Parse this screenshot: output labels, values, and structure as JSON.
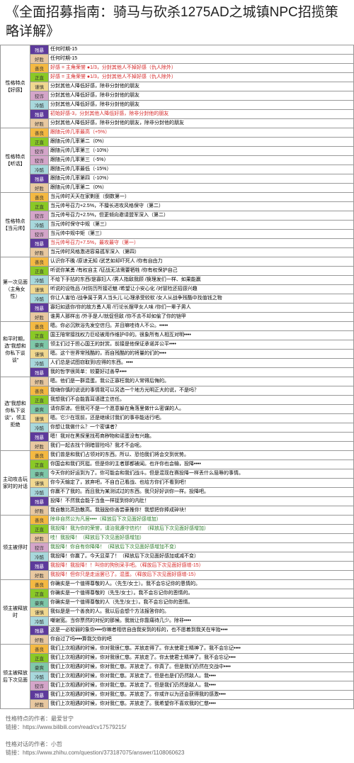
{
  "title": "《全面招募指南：骑马与砍杀1275AD之城镇NPC招揽策略详解》",
  "colors": {
    "残暴": "#5d3a9b",
    "善良": "#f4b942",
    "正直": "#8ac926",
    "狡诈": "#d4a5c9",
    "冷酷": "#a8d8dc",
    "好胜": "#e8c8a0",
    "谨慎": "#f0d890",
    "豪爽": "#7fc8a9"
  },
  "sections": [
    {
      "category": "性格特点\n【好感】",
      "rows": [
        {
          "tag": "残暴",
          "content": "任何时期-15",
          "red": false
        },
        {
          "tag": "好胜",
          "content": "任何时期-15",
          "red": false
        },
        {
          "tag": "善良",
          "content": "好感 = 主角荣誉 ●1/3，分封其他人不掉好感（仇人除外）",
          "red": true
        },
        {
          "tag": "正直",
          "content": "好感 = 主角荣誉 ●1/3，分封其他人不掉好感（仇人除外）",
          "red": true
        },
        {
          "tag": "谨慎",
          "content": "分封其他人降低好感，除非分封他的朋友"
        },
        {
          "tag": "狡诈",
          "content": "分封其他人降低好感，除非分封他的朋友"
        },
        {
          "tag": "冷酷",
          "content": "分封其他人降低好感，除非分封他的朋友"
        },
        {
          "tag": "残暴",
          "content": "初始好感-3，分封其他人降低好感，除非分封他的朋友",
          "red": true
        },
        {
          "tag": "好胜",
          "content": "分封其他人降低好感，除非分封他的朋友，除非分封他的朋友"
        }
      ]
    },
    {
      "category": "性格特点\n【听话】",
      "rows": [
        {
          "tag": "善良",
          "content": "跟随元帅几率最高（+5%）",
          "red": true
        },
        {
          "tag": "正直",
          "content": "跟随元帅几率第二（0%）"
        },
        {
          "tag": "狡诈",
          "content": "跟随元帅几率第三（-10%）"
        },
        {
          "tag": "狡诈",
          "content": "跟随元帅几率第三（-5%）"
        },
        {
          "tag": "冷酷",
          "content": "跟随元帅几率最低（-15%）"
        },
        {
          "tag": "残暴",
          "content": "跟随元帅几率第四（-10%）"
        },
        {
          "tag": "好胜",
          "content": "跟随元帅几率第二（0%）"
        }
      ]
    },
    {
      "category": "性格特点\n【当元帅】",
      "rows": [
        {
          "tag": "善良",
          "content": "当元帅时天天在家剿匪（倒数第一）"
        },
        {
          "tag": "正直",
          "content": "当元帅号召力+2.5%，不擅长进攻风格保守（第二）"
        },
        {
          "tag": "狡诈",
          "content": "当元帅号召力+2.5%，但更倾向邀请盟军深入（第二）"
        },
        {
          "tag": "冷酷",
          "content": "当元帅时保守中规（第三）"
        },
        {
          "tag": "狡诈",
          "content": "当元帅中规中矩（第三）"
        },
        {
          "tag": "残暴",
          "content": "当元帅号召力+7.5%，最攻最守（第一）",
          "red": true
        },
        {
          "tag": "好胜",
          "content": "当元帅时风格激进容易孤军深入（第四）"
        }
      ]
    },
    {
      "category": "第一次见面\n（主角女性）",
      "rows": [
        {
          "tag": "善良",
          "content": "认识你不晚 /原谅无知 /武艺如却吓死人 /你有自由力"
        },
        {
          "tag": "正直",
          "content": "听说你某勇 /有权自主 /征战无法需要牺牲 /你有权保护自己"
        },
        {
          "tag": "冷酷",
          "content": "不给下手拈的东西/是寡妇人 /男人指敌我顾 /换理发们一样、如果能赢"
        },
        {
          "tag": "谨慎",
          "content": "听说的设牲品 /对防历所接近魅 /希望让小安心化 /对冒险还招感兴趣"
        },
        {
          "tag": "冷酷",
          "content": "你让人害怕 /战争属于男人当头儿 /心理承受较软 /女人从战争残酷中找值钱之物"
        },
        {
          "tag": "残暴",
          "content": "寡妇如遗你/你的故方勇人用 /行论长摆甲女人味 /你们一辈子男人"
        },
        {
          "tag": "好胜",
          "content": "谁男人那样出 /外手是人/就促但敌 /你不去不却如偷了你的铠甲"
        }
      ]
    },
    {
      "category": "和平时期，选\"我想和你私下谈谈\"",
      "rows": [
        {
          "tag": "善良",
          "content": "嗯。你必沉默浴先发空信归。并且嘛哇待人不公。•••••"
        },
        {
          "tag": "正直",
          "content": "国王陪常接找权力巨经被用作维护中的。很象所有人相互对明••••"
        },
        {
          "tag": "豪爽",
          "content": "领主们过于担心国王的封赏。前接是他保证承诺并公平••••"
        },
        {
          "tag": "谨慎",
          "content": "嗯。这个世界常残酷的，而自残酷的的将量的们的••••"
        },
        {
          "tag": "冷酷",
          "content": "人们总是试图窃取到I应得的东西。••••"
        },
        {
          "tag": "残暴",
          "content": "我的哲学很简单：较要好过善早••••"
        }
      ]
    },
    {
      "category": "选\"我想和你私下谈谈\"，领主拒绝",
      "rows": [
        {
          "tag": "好胜",
          "content": "嗯。他们是一群混蛋。我公正寡枉我的人常得后悔的。"
        },
        {
          "tag": "善良",
          "content": "我嗨你慎的说说的事情我可以另选一个地方光明正大的说，不是吗？"
        },
        {
          "tag": "正直",
          "content": "我想我们不会能靠耳语建立信任。"
        },
        {
          "tag": "豪爽",
          "content": "请你原谅。但我可不是一个愿意躲在角落里做什么密谋的人。"
        },
        {
          "tag": "谨慎",
          "content": "嗯。它少在现前，还是继续讨我们的事非能适行吧。"
        },
        {
          "tag": "冷酷",
          "content": "你想让我做什么？一个密谋者？"
        },
        {
          "tag": "残暴",
          "content": "嗯！我对在黑探里找苟商秽物和谣蛋没有兴趣。"
        },
        {
          "tag": "好胜",
          "content": "我们一起去找个阴暗冒险吗？我才不会呢。"
        }
      ]
    },
    {
      "category": "主动攻击玩家时的对话",
      "rows": [
        {
          "tag": "善良",
          "content": "我们曾是和我们占领对的东西。所以、恐怕我们将会交到优势。"
        },
        {
          "tag": "正直",
          "content": "你国会和我们死挺。但是你的主者那都被闻。也许你也会输，投降••••"
        },
        {
          "tag": "豪爽",
          "content": "今天你的好运到为了。你可能会和我们战斗。但是混现在赛投降一样丢什么屈辱的事情。"
        },
        {
          "tag": "谨慎",
          "content": "你今天输定了，放弃吧，不自白己看战、也给方你们不看到吧！"
        },
        {
          "tag": "冷酷",
          "content": "你赢不了我的。而且我为某测试过的东西。我只好好训你一样。投降吧。"
        },
        {
          "tag": "残暴",
          "content": "投降！不然我会能于当鱼一样捉到你的内肚！"
        },
        {
          "tag": "好胜",
          "content": "我自散比高劲散高。我鼓励你善尝豪推你！我想把你捧成碎块！"
        }
      ]
    },
    {
      "category": "领主被俘时",
      "rows": [
        {
          "tag": "善良",
          "content": "除非自然公为凡居••••（释放后下次见面好感增加）",
          "green": true
        },
        {
          "tag": "正直",
          "content": "我投降！我为你的荣誉，请治我遵守信约！（释放后下次见面好感增加）",
          "green": true
        },
        {
          "tag": "好胜",
          "content": "哇！我投降！（释放后下次见面好感增加）",
          "green": true
        },
        {
          "tag": "狡诈",
          "content": "我投降！你自有你降降！（释放后下次见面好感增加不变）",
          "green": true
        },
        {
          "tag": "冷酷",
          "content": "我投降！你赢了。今天显菜了！（释放后下次见面好感加或减不变）"
        },
        {
          "tag": "残暴",
          "content": "我投降！我投降！！叫你的狗别采手吧。（释放后下次见面好感增-15）",
          "red": true
        },
        {
          "tag": "好胜",
          "content": "我投降！但你只是走运罢已了。混蛋。（释放后下次见面好感增-15）",
          "red": true
        }
      ]
    },
    {
      "category": "领主被释放时",
      "rows": [
        {
          "tag": "善良",
          "content": "你确实是一个值得尊敬的人。（先生/女士）。我不会忘记你的恩情的。"
        },
        {
          "tag": "正直",
          "content": "你确实是一个值得尊敬的（先生/女士）。我不会忘记你的恩情的。"
        },
        {
          "tag": "豪爽",
          "content": "你确实是一个值得尊敬的人（先生/女士）。我不会忘记你的恩情。"
        },
        {
          "tag": "谨慎",
          "content": "我似是是一个善良的人。我以后会想个方法报答你的。"
        },
        {
          "tag": "冷酷",
          "content": "嘲谢宽。当你票然的对纪的那候。我就让你靠痛待几少。除非••••"
        },
        {
          "tag": "残暴",
          "content": "这是一必软弱的象你••••你嘛者相信自由我安到的标的，也不愿着到我关在牢抬••••"
        },
        {
          "tag": "好胜",
          "content": "你自过了吗••••算我欠你的吧"
        }
      ]
    },
    {
      "category": "领主被释放后下次见面",
      "rows": [
        {
          "tag": "善良",
          "content": "我们上次相遇的时候，你对我很仁慈。并放走得了。你太使君士精神了。我不会忘记••••"
        },
        {
          "tag": "正直",
          "content": "我们上次相遇的时候，你对我很仁慈。并放走了。你太使君士精神了。我不会忘记••••"
        },
        {
          "tag": "豪爽",
          "content": "我们上次相遇的时候，你对我仁慈。并放走了。你真了。但是我们仍然在交战中••••"
        },
        {
          "tag": "冷酷",
          "content": "我们上次相遇的时候，你对我仁慈。并放走了。但是也是们仍然敌人。我••••"
        },
        {
          "tag": "狡诈",
          "content": "我们上次相遇的时候，你对我仁慈。并放走了。但是我们仍然是敌人。我••••"
        },
        {
          "tag": "残暴",
          "content": "我们上次相遇的时候，你对我仁慈。并放走了。你或许以为还会获得我的感激••••"
        },
        {
          "tag": "好胜",
          "content": "我们上次相遇的时候，你对我仁慈。并放走了。我希望你不喜欢我的仁慈••••"
        }
      ]
    }
  ],
  "footer": {
    "line1": "性格特点的作者：最爱甘宁",
    "link1": "链接：https://www.bilibili.com/read/cv17579215/",
    "line2": "性格对话的作者：小哲",
    "link2": "链接：https://www.zhihu.com/question/373187075/answer/1108060623"
  }
}
